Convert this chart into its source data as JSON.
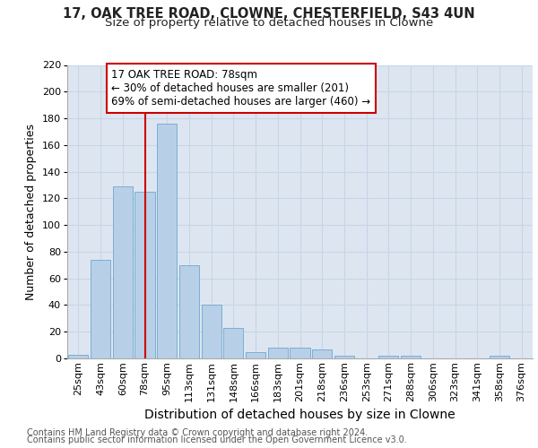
{
  "title1": "17, OAK TREE ROAD, CLOWNE, CHESTERFIELD, S43 4UN",
  "title2": "Size of property relative to detached houses in Clowne",
  "xlabel": "Distribution of detached houses by size in Clowne",
  "ylabel": "Number of detached properties",
  "categories": [
    "25sqm",
    "43sqm",
    "60sqm",
    "78sqm",
    "95sqm",
    "113sqm",
    "131sqm",
    "148sqm",
    "166sqm",
    "183sqm",
    "201sqm",
    "218sqm",
    "236sqm",
    "253sqm",
    "271sqm",
    "288sqm",
    "306sqm",
    "323sqm",
    "341sqm",
    "358sqm",
    "376sqm"
  ],
  "values": [
    3,
    74,
    129,
    125,
    176,
    70,
    40,
    23,
    5,
    8,
    8,
    7,
    2,
    0,
    2,
    2,
    0,
    0,
    0,
    2,
    0
  ],
  "bar_color": "#b8cfe8",
  "bar_edge_color": "#7aaed4",
  "grid_color": "#c8d4e8",
  "background_color": "#dde6f0",
  "vline_x": 3,
  "vline_color": "#cc0000",
  "annotation_lines": [
    "17 OAK TREE ROAD: 78sqm",
    "← 30% of detached houses are smaller (201)",
    "69% of semi-detached houses are larger (460) →"
  ],
  "ylim": [
    0,
    220
  ],
  "yticks": [
    0,
    20,
    40,
    60,
    80,
    100,
    120,
    140,
    160,
    180,
    200,
    220
  ],
  "footnote1": "Contains HM Land Registry data © Crown copyright and database right 2024.",
  "footnote2": "Contains public sector information licensed under the Open Government Licence v3.0.",
  "title_fontsize": 10.5,
  "subtitle_fontsize": 9.5,
  "tick_fontsize": 8,
  "ylabel_fontsize": 9,
  "xlabel_fontsize": 10,
  "ann_fontsize": 8.5,
  "footnote_fontsize": 7
}
